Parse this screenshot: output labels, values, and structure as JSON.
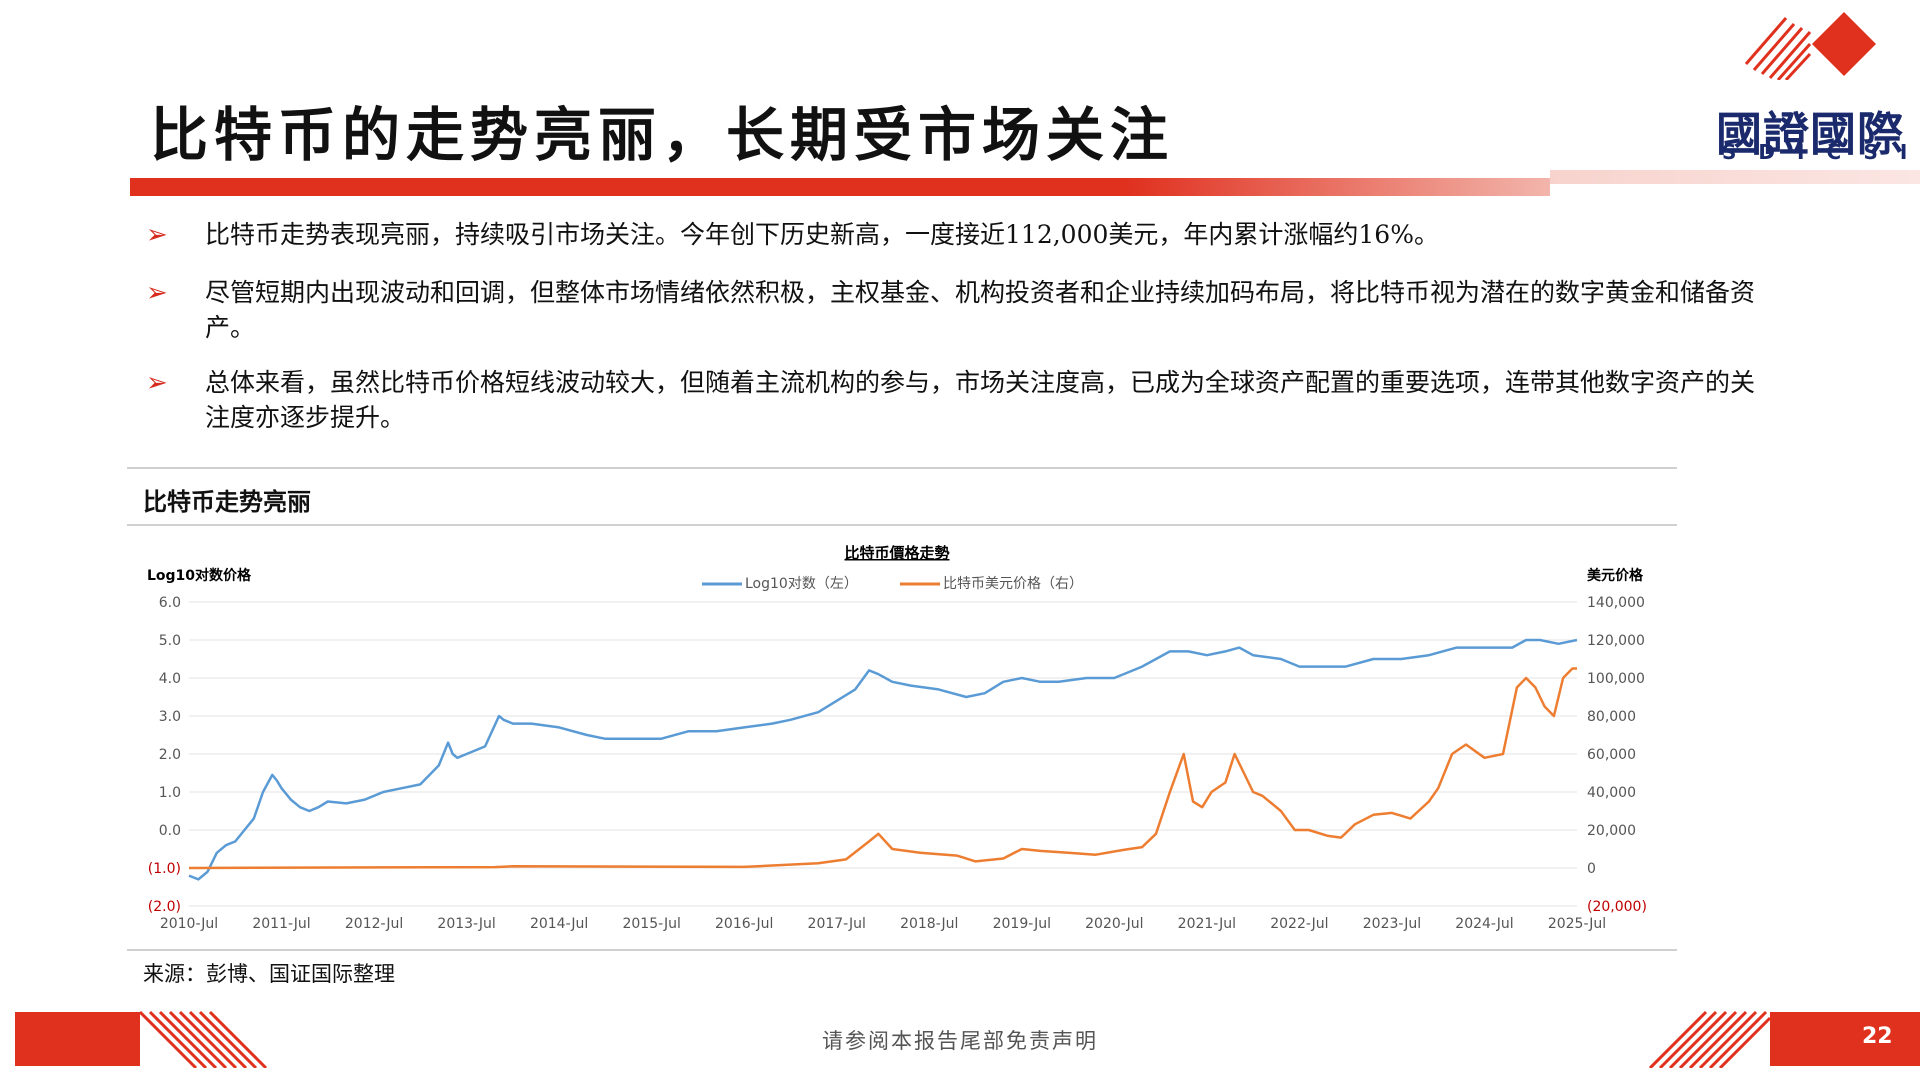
{
  "page": {
    "title": "比特币的走势亮丽，长期受市场关注",
    "logo": {
      "name": "國證國際",
      "sub": "SDICSI"
    },
    "bullets": [
      "比特币走势表现亮丽，持续吸引市场关注。今年创下历史新高，一度接近112,000美元，年内累计涨幅约16%。",
      "尽管短期内出现波动和回调，但整体市场情绪依然积极，主权基金、机构投资者和企业持续加码布局，将比特币视为潜在的数字黄金和储备资产。",
      "总体来看，虽然比特币价格短线波动较大，但随着主流机构的参与，市场关注度高，已成为全球资产配置的重要选项，连带其他数字资产的关注度亦逐步提升。"
    ],
    "chart_section_title": "比特币走势亮丽",
    "source": "来源：彭博、国证国际整理",
    "footer": "请参阅本报告尾部免责声明",
    "page_number": "22",
    "colors": {
      "accent": "#e0301e",
      "logo": "#1a2a6c"
    }
  },
  "chart_data": {
    "type": "line",
    "title": "比特币價格走勢",
    "ylabel_left": "Log10对数价格",
    "ylabel_right": "美元价格",
    "x_tick_labels": [
      "2010-Jul",
      "2011-Jul",
      "2012-Jul",
      "2013-Jul",
      "2014-Jul",
      "2015-Jul",
      "2016-Jul",
      "2017-Jul",
      "2018-Jul",
      "2019-Jul",
      "2020-Jul",
      "2021-Jul",
      "2022-Jul",
      "2023-Jul",
      "2024-Jul",
      "2025-Jul"
    ],
    "y_left_ticks": [
      "6.0",
      "5.0",
      "4.0",
      "3.0",
      "2.0",
      "1.0",
      "0.0",
      "(1.0)",
      "(2.0)"
    ],
    "y_right_ticks": [
      "140,000",
      "120,000",
      "100,000",
      "80,000",
      "60,000",
      "40,000",
      "20,000",
      "0",
      "(20,000)"
    ],
    "ylim_left": [
      -2,
      6
    ],
    "ylim_right": [
      -20000,
      140000
    ],
    "xlim": [
      2010.5,
      2025.5
    ],
    "legend_placement": "top-center",
    "grid": true,
    "series": [
      {
        "name": "Log10对数（左）",
        "axis": "left",
        "color": "#5b9bd5",
        "x": [
          2010.5,
          2010.6,
          2010.7,
          2010.8,
          2010.9,
          2011.0,
          2011.1,
          2011.2,
          2011.3,
          2011.4,
          2011.45,
          2011.5,
          2011.6,
          2011.7,
          2011.8,
          2011.9,
          2012.0,
          2012.2,
          2012.4,
          2012.6,
          2012.8,
          2013.0,
          2013.2,
          2013.3,
          2013.35,
          2013.4,
          2013.5,
          2013.7,
          2013.85,
          2013.9,
          2014.0,
          2014.2,
          2014.5,
          2014.8,
          2015.0,
          2015.3,
          2015.6,
          2015.9,
          2016.2,
          2016.5,
          2016.8,
          2017.0,
          2017.3,
          2017.5,
          2017.7,
          2017.85,
          2017.95,
          2018.1,
          2018.3,
          2018.6,
          2018.9,
          2019.1,
          2019.3,
          2019.5,
          2019.7,
          2019.9,
          2020.2,
          2020.5,
          2020.8,
          2020.95,
          2021.1,
          2021.3,
          2021.5,
          2021.7,
          2021.85,
          2022.0,
          2022.3,
          2022.5,
          2022.8,
          2023.0,
          2023.3,
          2023.6,
          2023.9,
          2024.2,
          2024.5,
          2024.8,
          2024.95,
          2025.1,
          2025.3,
          2025.5
        ],
        "y": [
          -1.2,
          -1.3,
          -1.1,
          -0.6,
          -0.4,
          -0.3,
          0.0,
          0.3,
          1.0,
          1.45,
          1.3,
          1.1,
          0.8,
          0.6,
          0.5,
          0.6,
          0.75,
          0.7,
          0.8,
          1.0,
          1.1,
          1.2,
          1.7,
          2.3,
          2.0,
          1.9,
          2.0,
          2.2,
          3.0,
          2.9,
          2.8,
          2.8,
          2.7,
          2.5,
          2.4,
          2.4,
          2.4,
          2.6,
          2.6,
          2.7,
          2.8,
          2.9,
          3.1,
          3.4,
          3.7,
          4.2,
          4.1,
          3.9,
          3.8,
          3.7,
          3.5,
          3.6,
          3.9,
          4.0,
          3.9,
          3.9,
          4.0,
          4.0,
          4.3,
          4.5,
          4.7,
          4.7,
          4.6,
          4.7,
          4.8,
          4.6,
          4.5,
          4.3,
          4.3,
          4.3,
          4.5,
          4.5,
          4.6,
          4.8,
          4.8,
          4.8,
          5.0,
          5.0,
          4.9,
          5.0
        ]
      },
      {
        "name": "比特币美元价格（右）",
        "axis": "right",
        "color": "#ed7d31",
        "x": [
          2010.5,
          2013.8,
          2014.0,
          2016.5,
          2017.3,
          2017.6,
          2017.85,
          2017.95,
          2018.1,
          2018.4,
          2018.8,
          2019.0,
          2019.3,
          2019.5,
          2019.7,
          2020.0,
          2020.3,
          2020.6,
          2020.8,
          2020.95,
          2021.1,
          2021.25,
          2021.35,
          2021.45,
          2021.55,
          2021.7,
          2021.8,
          2021.9,
          2022.0,
          2022.1,
          2022.3,
          2022.45,
          2022.6,
          2022.8,
          2022.95,
          2023.1,
          2023.3,
          2023.5,
          2023.7,
          2023.9,
          2024.0,
          2024.15,
          2024.3,
          2024.5,
          2024.7,
          2024.85,
          2024.95,
          2025.05,
          2025.15,
          2025.25,
          2025.35,
          2025.45,
          2025.5
        ],
        "y": [
          0,
          500,
          900,
          600,
          2500,
          4500,
          14000,
          18000,
          10000,
          8000,
          6500,
          3500,
          5000,
          10000,
          9000,
          8000,
          7000,
          9500,
          11000,
          18000,
          40000,
          60000,
          35000,
          32000,
          40000,
          45000,
          60000,
          50000,
          40000,
          38000,
          30000,
          20000,
          20000,
          17000,
          16000,
          23000,
          28000,
          29000,
          26000,
          35000,
          42000,
          60000,
          65000,
          58000,
          60000,
          95000,
          100000,
          95000,
          85000,
          80000,
          100000,
          105000,
          105000
        ]
      }
    ]
  }
}
